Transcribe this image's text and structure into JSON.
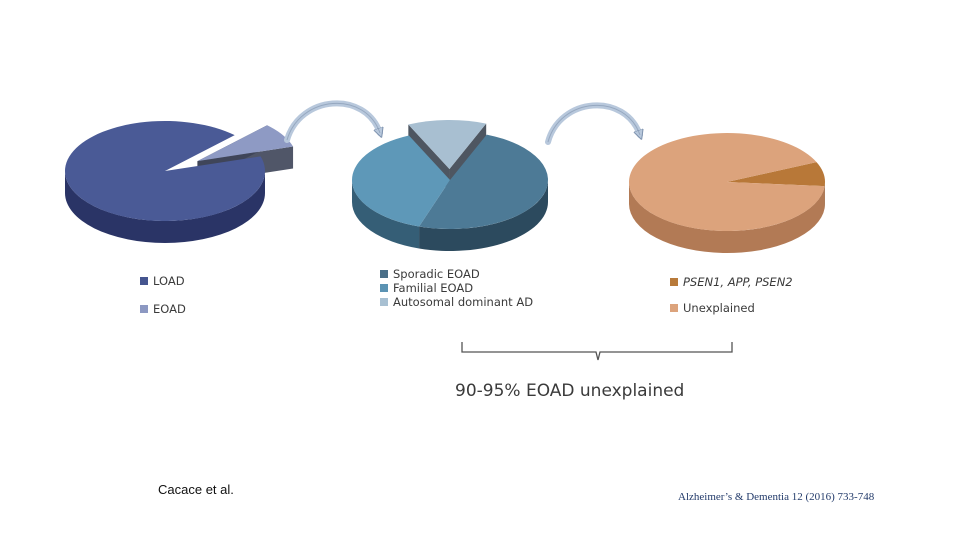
{
  "chart_data": [
    {
      "type": "pie",
      "categories": [
        "LOAD",
        "EOAD"
      ],
      "values": [
        92,
        8
      ],
      "exploded": "EOAD",
      "colors": {
        "top": [
          "#4a5a96",
          "#8e9ac4"
        ],
        "side": [
          "#2a3466",
          "#3d4458"
        ]
      },
      "legend": [
        {
          "label": "LOAD",
          "color": "#45558f"
        },
        {
          "label": "EOAD",
          "color": "#8c98c2"
        }
      ]
    },
    {
      "type": "pie",
      "categories": [
        "Sporadic EOAD",
        "Familial EOAD",
        "Autosomal dominant AD"
      ],
      "values": [
        49,
        38,
        13
      ],
      "exploded": "Autosomal dominant AD",
      "colors": {
        "top": [
          "#4d7a96",
          "#5e98b8",
          "#a8bfd1"
        ],
        "side": [
          "#2c4a5e",
          "#355e76",
          "#3b4450"
        ]
      },
      "legend": [
        {
          "label": "Sporadic EOAD",
          "color": "#4a6f88"
        },
        {
          "label": "Familial EOAD",
          "color": "#5b93b3"
        },
        {
          "label": "Autosomal dominant AD",
          "color": "#a8c0d2"
        }
      ]
    },
    {
      "type": "pie",
      "categories": [
        "PSEN1, APP, PSEN2",
        "Unexplained"
      ],
      "values": [
        8,
        92
      ],
      "colors": {
        "top": [
          "#b87838",
          "#dca37c"
        ],
        "side": [
          "#7a4a22",
          "#b27a55"
        ]
      },
      "legend": [
        {
          "label": "PSEN1, APP, PSEN2",
          "color": "#b87a3a",
          "italic": true
        },
        {
          "label": "Unexplained",
          "color": "#dca37c",
          "italic": false
        }
      ]
    }
  ],
  "summary": "90-95% EOAD unexplained",
  "credit": "Cacace et al.",
  "citation": "Alzheimer’s & Dementia 12 (2016) 733-748"
}
